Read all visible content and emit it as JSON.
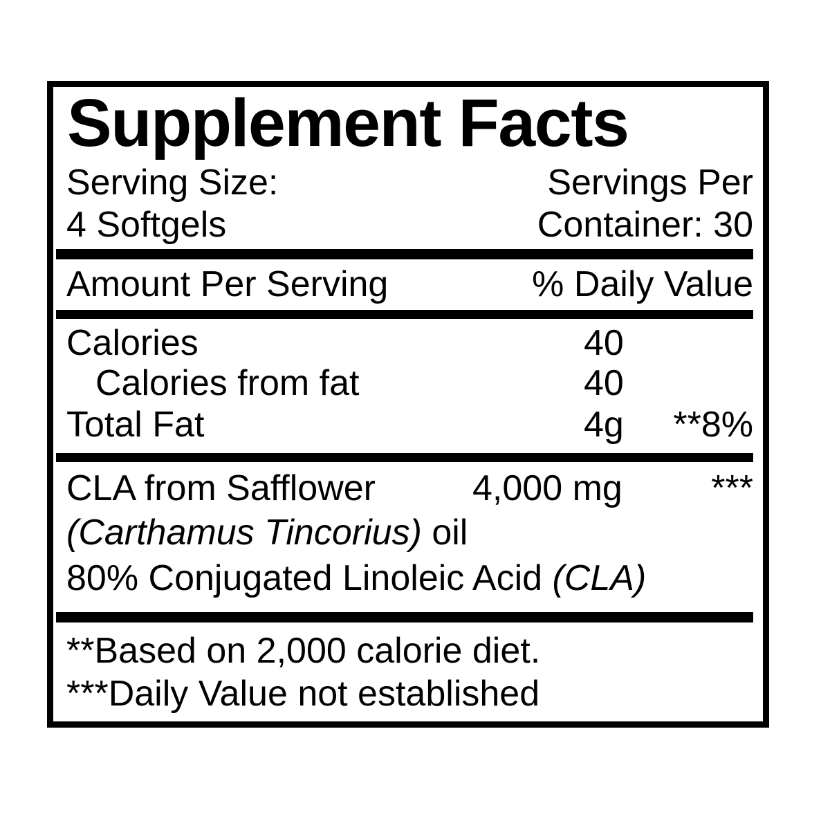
{
  "label": {
    "title": "Supplement Facts",
    "serving": {
      "size_label": "Serving Size:",
      "size_value": "4 Softgels",
      "servings_label": "Servings Per",
      "servings_value": "Container: 30"
    },
    "header": {
      "amount_per_serving": "Amount Per Serving",
      "daily_value": "% Daily Value"
    },
    "rows": [
      {
        "name": "Calories",
        "amount": "40",
        "dv": ""
      },
      {
        "name": "Calories from fat",
        "amount": "40",
        "dv": ""
      },
      {
        "name": "Total Fat",
        "amount": "4g",
        "dv": "**8%"
      }
    ],
    "cla": {
      "name": "CLA from Safflower",
      "amount": "4,000 mg",
      "dv": "***",
      "botanical_italic": "(Carthamus Tincorius)",
      "botanical_rest": " oil",
      "composition_text": "80% Conjugated Linoleic Acid ",
      "composition_italic": "(CLA)"
    },
    "footnotes": [
      "**Based on 2,000 calorie diet.",
      "***Daily Value not established"
    ],
    "colors": {
      "ink": "#000000",
      "background": "#ffffff"
    }
  }
}
